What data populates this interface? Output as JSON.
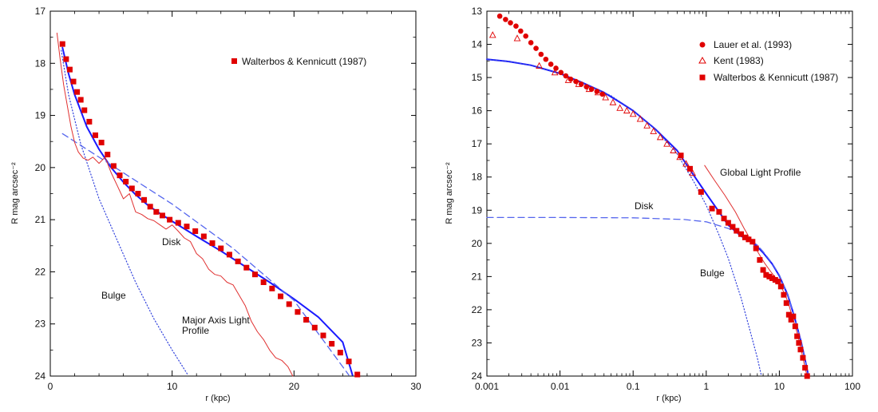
{
  "chart_data": [
    {
      "type": "scatter",
      "title": "",
      "xlabel": "r (kpc)",
      "ylabel": "R mag arcsec⁻²",
      "xlim": [
        0,
        30
      ],
      "ylim": [
        24,
        17
      ],
      "y_inverted": true,
      "x_scale": "linear",
      "xticks": [
        "0",
        "10",
        "20",
        "30"
      ],
      "yticks": [
        "17",
        "18",
        "19",
        "20",
        "21",
        "22",
        "23",
        "24"
      ],
      "legend": {
        "position": "top-right",
        "entries": [
          "Walterbos & Kennicutt (1987)"
        ]
      },
      "grid": false,
      "annotations": [
        {
          "text": "Disk"
        },
        {
          "text": "Bulge"
        },
        {
          "text": "Major Axis Light"
        },
        {
          "text": "Profile"
        }
      ],
      "series": [
        {
          "name": "Walterbos & Kennicutt (1987)",
          "kind": "points",
          "marker": "square",
          "color": "#e00000",
          "x": [
            1.0,
            1.3,
            1.6,
            1.9,
            2.2,
            2.5,
            2.8,
            3.2,
            3.7,
            4.2,
            4.7,
            5.2,
            5.7,
            6.2,
            6.7,
            7.2,
            7.7,
            8.2,
            8.7,
            9.2,
            9.8,
            10.5,
            11.2,
            11.9,
            12.6,
            13.3,
            14.0,
            14.7,
            15.4,
            16.1,
            16.8,
            17.5,
            18.2,
            18.9,
            19.6,
            20.3,
            21.0,
            21.7,
            22.4,
            23.1,
            23.8,
            24.5,
            25.2
          ],
          "y": [
            17.63,
            17.92,
            18.12,
            18.35,
            18.55,
            18.7,
            18.9,
            19.12,
            19.38,
            19.52,
            19.75,
            19.97,
            20.15,
            20.27,
            20.4,
            20.5,
            20.62,
            20.75,
            20.85,
            20.92,
            21.0,
            21.06,
            21.13,
            21.22,
            21.32,
            21.45,
            21.55,
            21.67,
            21.8,
            21.92,
            22.05,
            22.2,
            22.32,
            22.47,
            22.62,
            22.77,
            22.92,
            23.07,
            23.22,
            23.38,
            23.55,
            23.72,
            23.97
          ]
        },
        {
          "name": "",
          "kind": "model-total",
          "style": "solid",
          "color": "#1a1aff",
          "x": [
            1.0,
            1.5,
            2.0,
            3.0,
            4.0,
            5.0,
            6.0,
            7.0,
            8.0,
            9.0,
            10.0,
            12.0,
            14.0,
            16.0,
            18.0,
            20.0,
            22.0,
            24.0,
            24.8
          ],
          "y": [
            17.7,
            18.2,
            18.6,
            19.22,
            19.65,
            20.0,
            20.28,
            20.52,
            20.72,
            20.88,
            21.03,
            21.32,
            21.6,
            21.9,
            22.2,
            22.52,
            22.87,
            23.35,
            23.98
          ]
        },
        {
          "name": "",
          "kind": "disk",
          "style": "dashed",
          "color": "#5566ee",
          "x": [
            1.0,
            5.0,
            10.0,
            15.0,
            20.0,
            24.5
          ],
          "y": [
            19.35,
            19.95,
            20.7,
            21.55,
            22.55,
            23.98
          ]
        },
        {
          "name": "",
          "kind": "bulge",
          "style": "dotted",
          "color": "#3344dd",
          "x": [
            0.9,
            1.5,
            2.5,
            4.0,
            5.5,
            7.0,
            8.5,
            10.0,
            11.3
          ],
          "y": [
            17.75,
            18.6,
            19.55,
            20.6,
            21.4,
            22.2,
            22.9,
            23.5,
            23.98
          ]
        },
        {
          "name": "",
          "kind": "major-axis-profile",
          "style": "solid-thin",
          "color": "#e03030",
          "x": [
            0.55,
            0.8,
            1.1,
            1.4,
            1.7,
            2.0,
            2.3,
            2.7,
            3.1,
            3.5,
            4.0,
            4.5,
            5.0,
            5.5,
            6.0,
            6.5,
            7.0,
            7.5,
            8.0,
            8.5,
            9.0,
            9.5,
            10.0,
            10.5,
            11.0,
            11.5,
            12.0,
            12.5,
            13.0,
            13.5,
            14.0,
            14.5,
            15.0,
            15.5,
            16.0,
            16.5,
            17.0,
            17.5,
            18.0,
            18.5,
            19.0,
            19.5,
            19.9
          ],
          "y": [
            17.42,
            17.9,
            18.42,
            18.82,
            19.22,
            19.52,
            19.7,
            19.82,
            19.86,
            19.8,
            19.92,
            19.8,
            20.1,
            20.35,
            20.6,
            20.5,
            20.85,
            20.9,
            20.98,
            21.02,
            21.1,
            21.18,
            21.1,
            21.22,
            21.35,
            21.42,
            21.65,
            21.75,
            21.95,
            22.05,
            22.08,
            22.2,
            22.25,
            22.45,
            22.65,
            22.95,
            23.15,
            23.3,
            23.5,
            23.65,
            23.7,
            23.82,
            24.0
          ]
        }
      ]
    },
    {
      "type": "scatter",
      "title": "",
      "xlabel": "r (kpc)",
      "ylabel": "R mag arcsec⁻²",
      "xlim": [
        0.001,
        100
      ],
      "ylim": [
        24,
        13
      ],
      "y_inverted": true,
      "x_scale": "log",
      "xticks": [
        "0.001",
        "0.01",
        "0.1",
        "1",
        "10",
        "100"
      ],
      "yticks": [
        "13",
        "14",
        "15",
        "16",
        "17",
        "18",
        "19",
        "20",
        "21",
        "22",
        "23",
        "24"
      ],
      "legend": {
        "position": "top-right",
        "entries": [
          "Lauer et al. (1993)",
          "Kent (1983)",
          "Walterbos & Kennicutt (1987)"
        ]
      },
      "grid": false,
      "annotations": [
        {
          "text": "Global Light Profile"
        },
        {
          "text": "Disk"
        },
        {
          "text": "Bulge"
        }
      ],
      "series": [
        {
          "name": "Lauer et al. (1993)",
          "kind": "points",
          "marker": "circle",
          "color": "#e00000",
          "x": [
            0.0015,
            0.0018,
            0.0021,
            0.0025,
            0.0029,
            0.0034,
            0.004,
            0.0047,
            0.0055,
            0.0064,
            0.0075,
            0.0088,
            0.0103,
            0.012,
            0.014,
            0.0165,
            0.0195,
            0.023,
            0.027,
            0.032,
            0.038
          ],
          "y": [
            13.15,
            13.25,
            13.35,
            13.45,
            13.6,
            13.75,
            13.95,
            14.12,
            14.3,
            14.45,
            14.6,
            14.72,
            14.85,
            14.95,
            15.05,
            15.12,
            15.2,
            15.28,
            15.35,
            15.42,
            15.5
          ]
        },
        {
          "name": "Kent (1983)",
          "kind": "points",
          "marker": "open-triangle",
          "color": "#e00000",
          "x": [
            0.0012,
            0.0026,
            0.0052,
            0.0085,
            0.013,
            0.018,
            0.025,
            0.033,
            0.042,
            0.053,
            0.066,
            0.082,
            0.1,
            0.125,
            0.155,
            0.19,
            0.235,
            0.29,
            0.355,
            0.435,
            0.53,
            0.65
          ],
          "y": [
            13.72,
            13.82,
            14.65,
            14.85,
            15.08,
            15.2,
            15.35,
            15.45,
            15.6,
            15.75,
            15.92,
            16.0,
            16.1,
            16.25,
            16.45,
            16.62,
            16.8,
            17.0,
            17.2,
            17.4,
            17.6,
            17.88
          ]
        },
        {
          "name": "Walterbos & Kennicutt (1987)",
          "kind": "points",
          "marker": "square",
          "color": "#e00000",
          "x": [
            0.45,
            0.6,
            0.85,
            1.2,
            1.5,
            1.75,
            2.0,
            2.3,
            2.6,
            3.0,
            3.4,
            3.8,
            4.3,
            4.8,
            5.4,
            6.0,
            6.6,
            7.3,
            8.0,
            8.8,
            9.6,
            10.5,
            11.5,
            12.5,
            13.5,
            14.5,
            15.5,
            16.5,
            17.5,
            18.5,
            19.5,
            21.0,
            22.5,
            24.0
          ],
          "y": [
            17.35,
            17.75,
            18.45,
            18.95,
            19.05,
            19.25,
            19.38,
            19.5,
            19.62,
            19.72,
            19.82,
            19.88,
            19.95,
            20.15,
            20.5,
            20.8,
            20.95,
            21.0,
            21.05,
            21.1,
            21.15,
            21.3,
            21.55,
            21.8,
            22.15,
            22.3,
            22.2,
            22.5,
            22.8,
            23.0,
            23.2,
            23.45,
            23.75,
            24.0
          ]
        },
        {
          "name": "",
          "kind": "model-total",
          "style": "solid",
          "color": "#1a1aff",
          "x": [
            0.001,
            0.002,
            0.004,
            0.007,
            0.01,
            0.02,
            0.04,
            0.07,
            0.1,
            0.2,
            0.4,
            0.7,
            1.0,
            1.5,
            2.0,
            3.0,
            4.0,
            5.0,
            6.0,
            8.0,
            10.0,
            13.0,
            16.0,
            20.0,
            23.0,
            25.0
          ],
          "y": [
            14.45,
            14.52,
            14.63,
            14.78,
            14.88,
            15.15,
            15.45,
            15.78,
            16.0,
            16.55,
            17.2,
            18.0,
            18.5,
            19.05,
            19.45,
            19.78,
            19.92,
            20.1,
            20.28,
            20.62,
            20.98,
            21.55,
            22.2,
            23.0,
            23.6,
            24.0
          ]
        },
        {
          "name": "",
          "kind": "disk",
          "style": "dashed",
          "color": "#5566ee",
          "x": [
            0.001,
            0.01,
            0.1,
            0.5,
            1.0,
            2.0,
            3.0,
            4.0,
            5.0,
            6.0,
            8.0,
            10.0,
            13.0,
            16.0,
            20.0,
            23.0,
            25.0
          ],
          "y": [
            19.22,
            19.22,
            19.23,
            19.28,
            19.35,
            19.55,
            19.75,
            19.9,
            20.05,
            20.25,
            20.6,
            20.95,
            21.55,
            22.2,
            23.0,
            23.6,
            24.0
          ]
        },
        {
          "name": "",
          "kind": "bulge",
          "style": "dotted",
          "color": "#3344dd",
          "x": [
            0.001,
            0.002,
            0.004,
            0.01,
            0.02,
            0.05,
            0.1,
            0.2,
            0.4,
            0.7,
            1.0,
            1.5,
            2.0,
            3.0,
            4.0,
            5.0,
            5.7
          ],
          "y": [
            14.45,
            14.52,
            14.63,
            14.88,
            15.15,
            15.55,
            16.0,
            16.55,
            17.3,
            18.2,
            18.85,
            19.75,
            20.45,
            21.65,
            22.65,
            23.45,
            24.0
          ]
        },
        {
          "name": "",
          "kind": "global-profile",
          "style": "solid-thin",
          "color": "#e03030",
          "x": [
            0.95,
            1.3,
            1.8,
            2.5,
            3.3,
            4.2,
            5.2,
            6.3,
            7.6,
            9.0,
            10.5,
            12.0,
            13.5,
            15.0,
            17.0,
            19.0,
            21.0,
            23.0,
            24.5
          ],
          "y": [
            17.65,
            18.1,
            18.55,
            19.05,
            19.55,
            19.95,
            20.3,
            20.6,
            20.85,
            21.05,
            21.3,
            21.55,
            21.85,
            22.2,
            22.6,
            23.0,
            23.45,
            23.85,
            24.02
          ]
        }
      ]
    }
  ]
}
